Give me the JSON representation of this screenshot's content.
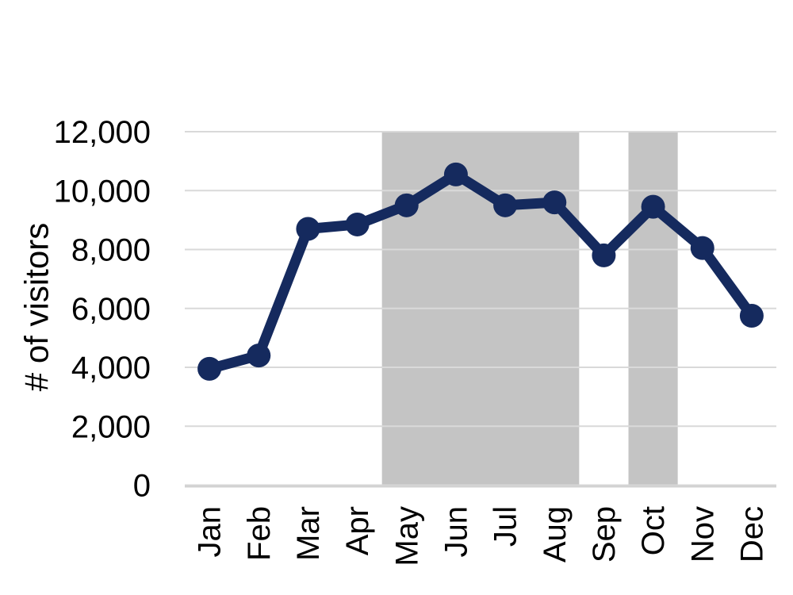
{
  "page": {
    "background": "#ffffff"
  },
  "chart_data": {
    "type": "line",
    "title": "",
    "ylabel": "# of visitors",
    "xlabel": "",
    "categories": [
      "Jan",
      "Feb",
      "Mar",
      "Apr",
      "May",
      "Jun",
      "Jul",
      "Aug",
      "Sep",
      "Oct",
      "Nov",
      "Dec"
    ],
    "series": [
      {
        "name": "# of visitors",
        "values": [
          3950,
          4400,
          8700,
          8850,
          9500,
          10550,
          9500,
          9600,
          7800,
          9450,
          8050,
          5750
        ],
        "marker": "circle"
      }
    ],
    "ylim": [
      0,
      12000
    ],
    "ytick_interval": 2000,
    "ytick_labels": [
      "0",
      "2,000",
      "4,000",
      "6,000",
      "8,000",
      "10,000",
      "12,000"
    ],
    "grid": "horizontal-only",
    "legend_position": "none",
    "x_tick_rotation_deg": 90,
    "shaded_bands": [
      {
        "from": "May",
        "to": "Aug"
      },
      {
        "from": "Oct",
        "to": "Oct"
      }
    ],
    "colors": {
      "line": "#152a5e",
      "marker": "#152a5e",
      "band": "#c4c4c4",
      "gridline": "#d9d9d9",
      "axis_line": "#d2d2d2",
      "text": "#000000",
      "background": "#ffffff"
    }
  }
}
